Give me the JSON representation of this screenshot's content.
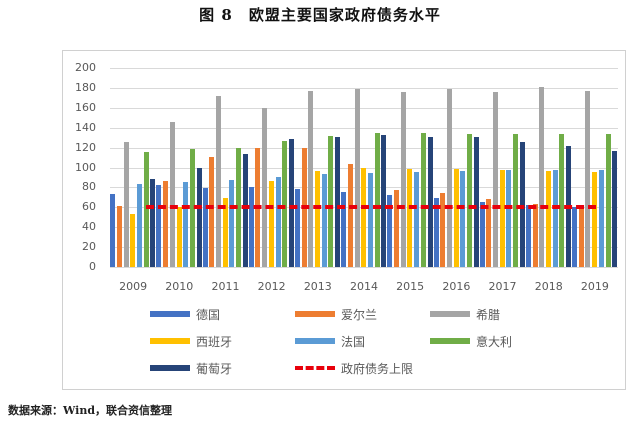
{
  "title": "图 8　欧盟主要国家政府债务水平",
  "source": "数据来源：Wind，联合资信整理",
  "legend": {
    "germany": "德国",
    "ireland": "爱尔兰",
    "greece": "希腊",
    "spain": "西班牙",
    "france": "法国",
    "italy": "意大利",
    "portugal": "葡萄牙",
    "limit": "政府债务上限"
  },
  "yticks": [
    "200",
    "180",
    "160",
    "140",
    "120",
    "100",
    "80",
    "60",
    "40",
    "20",
    "0"
  ],
  "xticks": [
    "2009",
    "2010",
    "2011",
    "2012",
    "2013",
    "2014",
    "2015",
    "2016",
    "2017",
    "2018",
    "2019"
  ],
  "colors": {
    "germany": "#4472c4",
    "ireland": "#ed7d31",
    "greece": "#a5a5a5",
    "spain": "#ffc000",
    "france": "#5b9bd5",
    "italy": "#70ad47",
    "portugal": "#264478",
    "limit": "#e8000b"
  },
  "chart_data": {
    "type": "bar",
    "title": "欧盟主要国家政府债务水平",
    "xlabel": "",
    "ylabel": "",
    "ylim": [
      0,
      200
    ],
    "grid": true,
    "legend_position": "bottom",
    "categories": [
      "2009",
      "2010",
      "2011",
      "2012",
      "2013",
      "2014",
      "2015",
      "2016",
      "2017",
      "2018",
      "2019"
    ],
    "series": [
      {
        "name": "德国",
        "values": [
          73,
          82,
          79,
          80,
          78,
          75,
          72,
          69,
          65,
          62,
          60
        ]
      },
      {
        "name": "爱尔兰",
        "values": [
          61,
          86,
          111,
          120,
          120,
          104,
          77,
          74,
          68,
          63,
          58
        ]
      },
      {
        "name": "希腊",
        "values": [
          126,
          146,
          172,
          160,
          177,
          179,
          176,
          179,
          176,
          181,
          177
        ]
      },
      {
        "name": "西班牙",
        "values": [
          53,
          60,
          69,
          86,
          96,
          100,
          99,
          99,
          98,
          97,
          95
        ]
      },
      {
        "name": "法国",
        "values": [
          83,
          85,
          87,
          90,
          93,
          94,
          95,
          97,
          98,
          98,
          98
        ]
      },
      {
        "name": "意大利",
        "values": [
          116,
          119,
          120,
          127,
          132,
          135,
          135,
          134,
          134,
          134,
          134
        ]
      },
      {
        "name": "葡萄牙",
        "values": [
          88,
          100,
          114,
          129,
          131,
          133,
          131,
          131,
          126,
          122,
          117
        ]
      },
      {
        "name": "政府债务上限",
        "type": "line",
        "values": [
          60,
          60,
          60,
          60,
          60,
          60,
          60,
          60,
          60,
          60,
          60
        ]
      }
    ]
  }
}
